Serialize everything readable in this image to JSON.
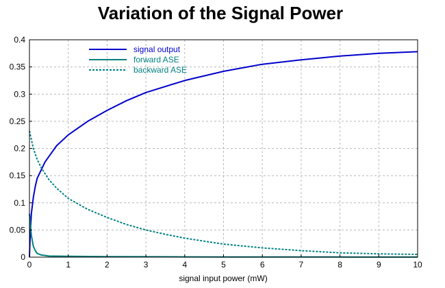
{
  "chart_data": {
    "type": "line",
    "title": "Variation of the Signal Power",
    "xlabel": "signal input power (mW)",
    "ylabel": "",
    "xlim": [
      0,
      10
    ],
    "ylim": [
      0,
      0.4
    ],
    "xticks": [
      "0",
      "1",
      "2",
      "3",
      "4",
      "5",
      "6",
      "7",
      "8",
      "9",
      "10"
    ],
    "yticks": [
      "0",
      "0.05",
      "0.1",
      "0.15",
      "0.2",
      "0.25",
      "0.3",
      "0.35",
      "0.4"
    ],
    "grid": true,
    "legend_position": "top-left",
    "series": [
      {
        "name": "signal output",
        "color": "#0000cc",
        "style": "solid",
        "x": [
          0,
          0.02,
          0.05,
          0.1,
          0.15,
          0.2,
          0.3,
          0.4,
          0.5,
          0.7,
          1,
          1.5,
          2,
          2.5,
          3,
          4,
          5,
          6,
          7,
          8,
          9,
          10
        ],
        "y": [
          0.0,
          0.04,
          0.08,
          0.11,
          0.13,
          0.145,
          0.16,
          0.175,
          0.185,
          0.205,
          0.225,
          0.25,
          0.27,
          0.288,
          0.303,
          0.325,
          0.342,
          0.355,
          0.363,
          0.37,
          0.375,
          0.378
        ]
      },
      {
        "name": "forward ASE",
        "color": "#008080",
        "style": "solid",
        "x": [
          0,
          0.05,
          0.1,
          0.15,
          0.2,
          0.3,
          0.5,
          1,
          2,
          3,
          4,
          5,
          6,
          7,
          8,
          9,
          10
        ],
        "y": [
          0.08,
          0.04,
          0.02,
          0.012,
          0.007,
          0.004,
          0.002,
          0.0015,
          0.001,
          0.0008,
          0.0005,
          0.0004,
          0.0003,
          0.0002,
          0.0002,
          0.0001,
          0.0001
        ]
      },
      {
        "name": "backward ASE",
        "color": "#008080",
        "style": "dashed",
        "x": [
          0,
          0.1,
          0.2,
          0.3,
          0.5,
          0.7,
          1,
          1.5,
          2,
          2.5,
          3,
          3.5,
          4,
          5,
          6,
          7,
          8,
          9,
          10
        ],
        "y": [
          0.232,
          0.2,
          0.18,
          0.165,
          0.143,
          0.127,
          0.108,
          0.088,
          0.073,
          0.06,
          0.05,
          0.042,
          0.035,
          0.024,
          0.017,
          0.012,
          0.008,
          0.006,
          0.005
        ]
      }
    ]
  }
}
